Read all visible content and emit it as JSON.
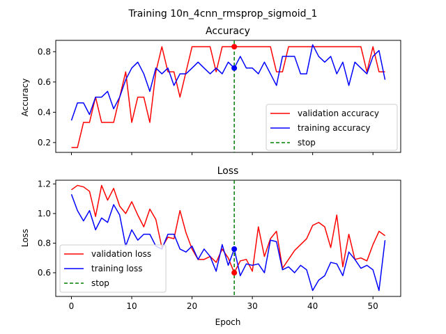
{
  "suptitle": "Training 10n_4cnn_rmsprop_sigmoid_1",
  "colors": {
    "validation": "#ff0000",
    "training": "#0000ff",
    "stop": "#008000"
  },
  "chart_data": [
    {
      "type": "line",
      "title": "Accuracy",
      "xlabel": "",
      "ylabel": "Accuracy",
      "xlim": [
        -2.6,
        54.6
      ],
      "ylim": [
        0.135,
        0.875
      ],
      "xticks": [
        0,
        10,
        20,
        30,
        40,
        50
      ],
      "yticks": [
        0.2,
        0.4,
        0.6,
        0.8
      ],
      "ytick_labels": [
        "0.2",
        "0.4",
        "0.6",
        "0.8"
      ],
      "legend": "lower-right",
      "stop_epoch": 27,
      "series": [
        {
          "name": "validation accuracy",
          "color": "#ff0000",
          "values": [
            0.167,
            0.167,
            0.333,
            0.333,
            0.5,
            0.333,
            0.333,
            0.333,
            0.5,
            0.667,
            0.333,
            0.5,
            0.5,
            0.333,
            0.667,
            0.833,
            0.667,
            0.667,
            0.5,
            0.667,
            0.833,
            0.833,
            0.833,
            0.833,
            0.667,
            0.833,
            0.833,
            0.833,
            0.833,
            0.833,
            0.833,
            0.833,
            0.833,
            0.833,
            0.667,
            0.667,
            0.833,
            0.833,
            0.833,
            0.833,
            0.833,
            0.833,
            0.833,
            0.833,
            0.833,
            0.833,
            0.833,
            0.833,
            0.833,
            0.667,
            0.833,
            0.667,
            0.667
          ]
        },
        {
          "name": "training accuracy",
          "color": "#0000ff",
          "values": [
            0.346,
            0.462,
            0.462,
            0.385,
            0.5,
            0.5,
            0.538,
            0.423,
            0.5,
            0.615,
            0.692,
            0.731,
            0.654,
            0.538,
            0.692,
            0.654,
            0.692,
            0.577,
            0.654,
            0.654,
            0.692,
            0.731,
            0.692,
            0.654,
            0.692,
            0.654,
            0.731,
            0.692,
            0.769,
            0.692,
            0.692,
            0.654,
            0.731,
            0.654,
            0.577,
            0.769,
            0.769,
            0.769,
            0.654,
            0.654,
            0.846,
            0.769,
            0.731,
            0.769,
            0.654,
            0.731,
            0.577,
            0.731,
            0.692,
            0.654,
            0.769,
            0.808,
            0.615
          ]
        }
      ],
      "markers": [
        {
          "x": 27,
          "y": 0.833,
          "color": "#ff0000"
        },
        {
          "x": 27,
          "y": 0.692,
          "color": "#0000ff"
        }
      ],
      "legend_entries": [
        "validation accuracy",
        "training accuracy",
        "stop"
      ]
    },
    {
      "type": "line",
      "title": "Loss",
      "xlabel": "Epoch",
      "ylabel": "Loss",
      "xlim": [
        -2.6,
        54.6
      ],
      "ylim": [
        0.44,
        1.225
      ],
      "xticks": [
        0,
        10,
        20,
        30,
        40,
        50
      ],
      "yticks": [
        0.6,
        0.8,
        1.0,
        1.2
      ],
      "ytick_labels": [
        "0.6",
        "0.8",
        "1.0",
        "1.2"
      ],
      "xtick_labels": [
        "0",
        "10",
        "20",
        "30",
        "40",
        "50"
      ],
      "legend": "lower-left",
      "stop_epoch": 27,
      "series": [
        {
          "name": "validation loss",
          "color": "#ff0000",
          "values": [
            1.16,
            1.19,
            1.18,
            1.15,
            0.98,
            1.19,
            1.09,
            1.17,
            1.05,
            1.0,
            1.08,
            0.99,
            0.91,
            1.03,
            0.96,
            0.77,
            0.84,
            0.83,
            1.02,
            0.87,
            0.76,
            0.69,
            0.69,
            0.71,
            0.67,
            0.76,
            0.7,
            0.6,
            0.68,
            0.69,
            0.61,
            0.91,
            0.71,
            0.83,
            0.88,
            0.63,
            0.69,
            0.75,
            0.79,
            0.83,
            0.92,
            0.94,
            0.91,
            0.77,
            0.99,
            0.64,
            0.86,
            0.69,
            0.7,
            0.68,
            0.79,
            0.88,
            0.85
          ]
        },
        {
          "name": "training loss",
          "color": "#0000ff",
          "values": [
            1.13,
            1.02,
            0.95,
            1.02,
            0.89,
            0.97,
            0.94,
            1.06,
            0.99,
            0.78,
            0.89,
            0.82,
            0.86,
            0.86,
            0.78,
            0.76,
            0.86,
            0.86,
            0.76,
            0.74,
            0.78,
            0.69,
            0.76,
            0.71,
            0.61,
            0.79,
            0.65,
            0.76,
            0.58,
            0.66,
            0.65,
            0.66,
            0.6,
            0.82,
            0.81,
            0.62,
            0.64,
            0.6,
            0.65,
            0.62,
            0.48,
            0.55,
            0.58,
            0.67,
            0.66,
            0.58,
            0.74,
            0.69,
            0.63,
            0.65,
            0.62,
            0.48,
            0.82
          ]
        }
      ],
      "markers": [
        {
          "x": 27,
          "y": 0.6,
          "color": "#ff0000"
        },
        {
          "x": 27,
          "y": 0.76,
          "color": "#0000ff"
        }
      ],
      "legend_entries": [
        "validation loss",
        "training loss",
        "stop"
      ]
    }
  ]
}
